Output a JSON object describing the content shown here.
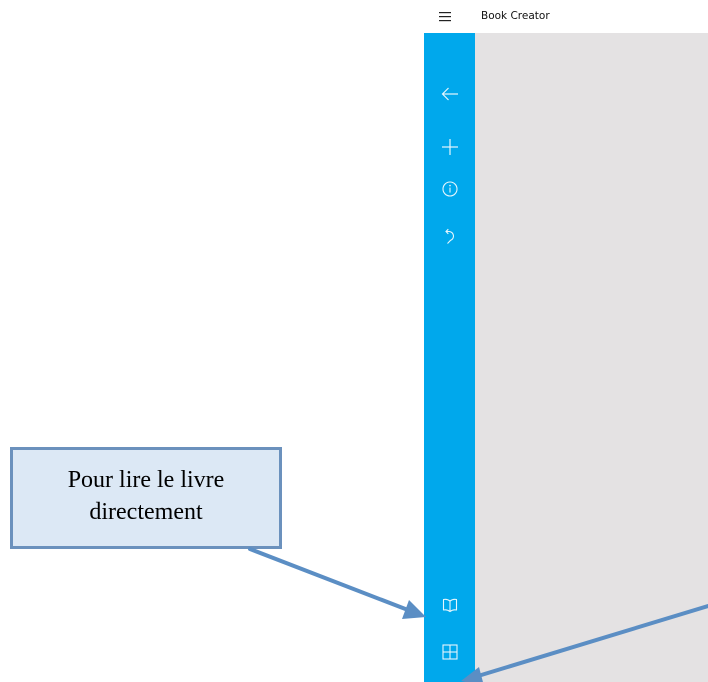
{
  "app": {
    "title": "Book Creator"
  },
  "titlebar": {
    "menu_icon": "hamburger-menu-icon"
  },
  "command_bar": {
    "color": "#00a8ec",
    "top_buttons": [
      {
        "icon": "back-arrow-icon"
      },
      {
        "icon": "add-plus-icon"
      },
      {
        "icon": "info-icon"
      },
      {
        "icon": "undo-icon"
      }
    ],
    "bottom_buttons": [
      {
        "icon": "open-book-icon"
      },
      {
        "icon": "pages-grid-icon"
      }
    ]
  },
  "canvas": {
    "color": "#e4e2e3"
  },
  "annotation": {
    "callout_text": "Pour lire le livre directement",
    "box_fill": "#dce8f5",
    "border_color": "#6b91bd",
    "arrow_color": "#5b8ec4"
  }
}
